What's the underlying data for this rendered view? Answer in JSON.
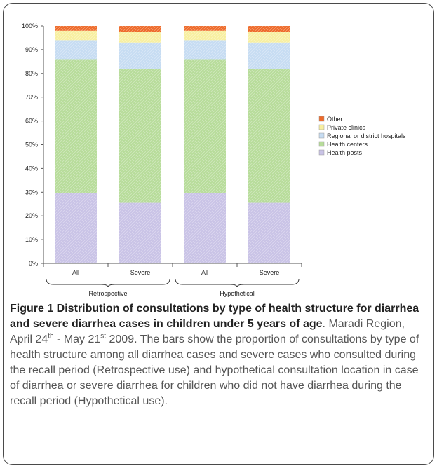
{
  "chart_data": {
    "type": "bar",
    "stacked": true,
    "categories": [
      "All",
      "Severe",
      "All",
      "Severe"
    ],
    "groups": [
      {
        "label": "Retrospective",
        "categories": [
          0,
          1
        ]
      },
      {
        "label": "Hypothetical",
        "categories": [
          2,
          3
        ]
      }
    ],
    "ylim": [
      0,
      100
    ],
    "yticks": [
      "0%",
      "10%",
      "20%",
      "30%",
      "40%",
      "50%",
      "60%",
      "70%",
      "80%",
      "90%",
      "100%"
    ],
    "series": [
      {
        "name": "Health posts",
        "color": "#c9c3e6",
        "values": [
          29.5,
          25.5,
          29.5,
          25.5
        ]
      },
      {
        "name": "Health centers",
        "color": "#b7dc9a",
        "values": [
          56.5,
          56.5,
          56.5,
          56.5
        ]
      },
      {
        "name": "Regional or district hospitals",
        "color": "#c6dcf2",
        "values": [
          8,
          11,
          8,
          11
        ]
      },
      {
        "name": "Private clinics",
        "color": "#f7efa0",
        "values": [
          4,
          4.5,
          4,
          4.5
        ]
      },
      {
        "name": "Other",
        "color": "#ee6a2a",
        "values": [
          2,
          2.5,
          2,
          2.5
        ]
      }
    ],
    "legend_order": [
      "Other",
      "Private clinics",
      "Regional or district hospitals",
      "Health centers",
      "Health posts"
    ],
    "legend_position": "right",
    "grid": false
  },
  "caption": {
    "title": "Figure 1 Distribution of consultations by type of health structure for diarrhea and severe diarrhea cases in children under 5 years of age",
    "text_1": ". Maradi Region, April 24",
    "sup_1": "th",
    "text_2": " - May 21",
    "sup_2": "st",
    "text_3": " 2009. The bars show the proportion of consultations by type of health structure among all diarrhea cases and severe cases who consulted during the recall period (Retrospective use) and hypothetical consultation location in case of diarrhea or severe diarrhea for children who did not have diarrhea during the recall period (Hypothetical use)."
  }
}
